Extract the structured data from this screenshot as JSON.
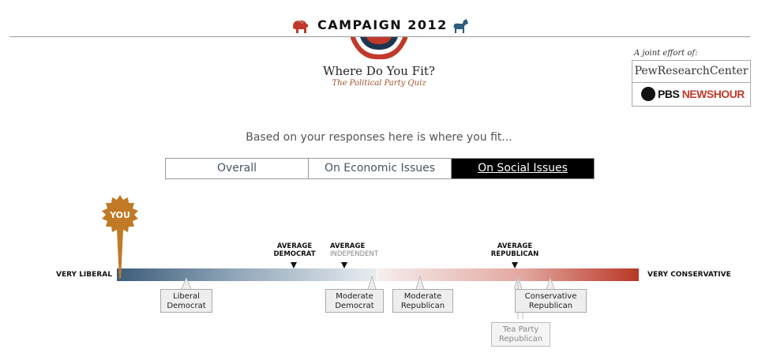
{
  "header": {
    "title": "CAMPAIGN 2012",
    "left_icon": "elephant-icon",
    "right_icon": "donkey-icon"
  },
  "quiz": {
    "title": "Where Do You Fit?",
    "subtitle": "The Political Party Quiz"
  },
  "partners": {
    "label": "A joint effort of:",
    "pew": "PewResearchCenter",
    "pbs_a": "PBS ",
    "pbs_b": "NEWSHOUR"
  },
  "result_text": "Based on your responses here is where you fit...",
  "tabs": [
    {
      "label": "Overall",
      "active": false
    },
    {
      "label": "On Economic Issues",
      "active": false
    },
    {
      "label": "On Social Issues",
      "active": true
    }
  ],
  "scale": {
    "left_label": "VERY LIBERAL",
    "right_label": "VERY CONSERVATIVE",
    "you_label": "YOU",
    "averages": {
      "democrat": [
        "AVERAGE",
        "DEMOCRAT"
      ],
      "independent": [
        "AVERAGE",
        "INDEPENDENT"
      ],
      "republican": [
        "AVERAGE",
        "REPUBLICAN"
      ]
    },
    "groups": {
      "liberal_democrat": [
        "Liberal",
        "Democrat"
      ],
      "moderate_democrat": [
        "Moderate",
        "Democrat"
      ],
      "moderate_republican": [
        "Moderate",
        "Republican"
      ],
      "conservative_republican": [
        "Conservative",
        "Republican"
      ],
      "tea_party_republican": [
        "Tea Party",
        "Republican"
      ]
    }
  },
  "colors": {
    "liberal": "#3d5d7a",
    "conservative": "#b93727",
    "you_badge": "#c07a26",
    "active_tab": "#000000"
  }
}
